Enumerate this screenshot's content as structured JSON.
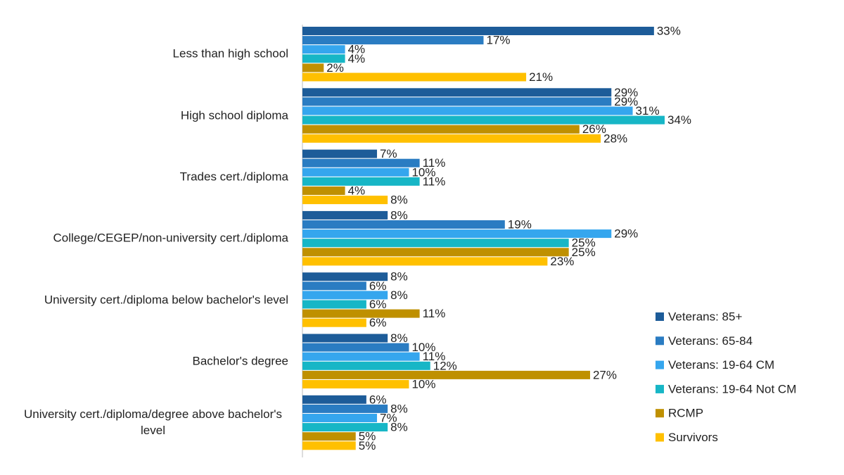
{
  "chart_data": {
    "type": "bar",
    "orientation": "horizontal",
    "categories": [
      "Less than high school",
      "High school diploma",
      "Trades cert./diploma",
      "College/CEGEP/non-university cert./diploma",
      "University cert./diploma below bachelor's level",
      "Bachelor's degree",
      "University cert./diploma/degree above bachelor's level"
    ],
    "series": [
      {
        "name": "Veterans: 85+",
        "color": "#1d5c99",
        "values": [
          33,
          29,
          7,
          8,
          8,
          8,
          6
        ],
        "value_labels": [
          "33%",
          "29%",
          "7%",
          "8%",
          "8%",
          "8%",
          "6%"
        ]
      },
      {
        "name": "Veterans: 65-84",
        "color": "#2a7cc2",
        "values": [
          17,
          29,
          11,
          19,
          6,
          10,
          8
        ],
        "value_labels": [
          "17%",
          "29%",
          "11%",
          "19%",
          "6%",
          "10%",
          "8%"
        ]
      },
      {
        "name": "Veterans: 19-64 CM",
        "color": "#35a6ee",
        "values": [
          4,
          31,
          10,
          29,
          8,
          11,
          7
        ],
        "value_labels": [
          "4%",
          "31%",
          "10%",
          "29%",
          "8%",
          "11%",
          "7%"
        ]
      },
      {
        "name": "Veterans: 19-64 Not CM",
        "color": "#17b6c6",
        "values": [
          4,
          34,
          11,
          25,
          6,
          12,
          8
        ],
        "value_labels": [
          "4%",
          "34%",
          "11%",
          "25%",
          "6%",
          "12%",
          "8%"
        ]
      },
      {
        "name": "RCMP",
        "color": "#bf9000",
        "values": [
          2,
          26,
          4,
          25,
          11,
          27,
          5
        ],
        "value_labels": [
          "2%",
          "26%",
          "4%",
          "25%",
          "11%",
          "27%",
          "5%"
        ]
      },
      {
        "name": "Survivors",
        "color": "#ffc000",
        "values": [
          21,
          28,
          8,
          23,
          6,
          10,
          5
        ],
        "value_labels": [
          "21%",
          "28%",
          "8%",
          "23%",
          "6%",
          "10%",
          "5%"
        ]
      }
    ],
    "legend": "right"
  }
}
